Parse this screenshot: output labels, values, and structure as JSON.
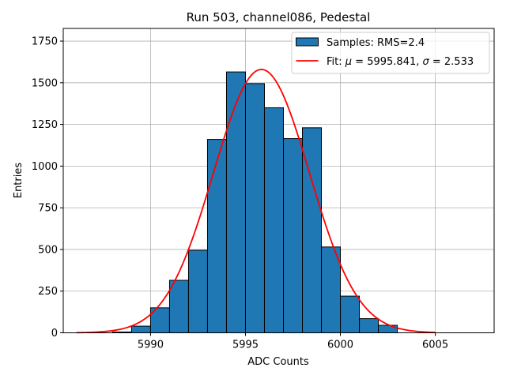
{
  "chart_data": {
    "type": "bar",
    "title": "Run 503, channel086, Pedestal",
    "xlabel": "ADC Counts",
    "ylabel": "Entries",
    "xlim": [
      5985.4,
      6008.1
    ],
    "ylim": [
      0,
      1826
    ],
    "xticks": [
      5990,
      5995,
      6000,
      6005
    ],
    "yticks": [
      0,
      250,
      500,
      750,
      1000,
      1250,
      1500,
      1750
    ],
    "grid": true,
    "legend_position": "top-right",
    "bar_color": "#1f77b4",
    "fit_color": "#ff0000",
    "bins": [
      {
        "x0": 5987,
        "x1": 5988,
        "count": 0
      },
      {
        "x0": 5988,
        "x1": 5989,
        "count": 5
      },
      {
        "x0": 5989,
        "x1": 5990,
        "count": 40
      },
      {
        "x0": 5990,
        "x1": 5991,
        "count": 150
      },
      {
        "x0": 5991,
        "x1": 5992,
        "count": 315
      },
      {
        "x0": 5992,
        "x1": 5993,
        "count": 495
      },
      {
        "x0": 5993,
        "x1": 5994,
        "count": 1160
      },
      {
        "x0": 5994,
        "x1": 5995,
        "count": 1565
      },
      {
        "x0": 5995,
        "x1": 5996,
        "count": 1495
      },
      {
        "x0": 5996,
        "x1": 5997,
        "count": 1350
      },
      {
        "x0": 5997,
        "x1": 5998,
        "count": 1165
      },
      {
        "x0": 5998,
        "x1": 5999,
        "count": 1230
      },
      {
        "x0": 5999,
        "x1": 6000,
        "count": 515
      },
      {
        "x0": 6000,
        "x1": 6001,
        "count": 220
      },
      {
        "x0": 6001,
        "x1": 6002,
        "count": 85
      },
      {
        "x0": 6002,
        "x1": 6003,
        "count": 45
      },
      {
        "x0": 6003,
        "x1": 6004,
        "count": 0
      }
    ],
    "fit": {
      "mu": 5995.841,
      "sigma": 2.533,
      "amplitude": 1580,
      "x_range": [
        5986.1,
        6005.0
      ]
    },
    "legend": {
      "samples_label": "Samples: RMS=2.4",
      "fit_prefix": "Fit: ",
      "mu_symbol": "μ",
      "mu_text": " = 5995.841, ",
      "sigma_symbol": "σ",
      "sigma_text": " = 2.533"
    }
  }
}
